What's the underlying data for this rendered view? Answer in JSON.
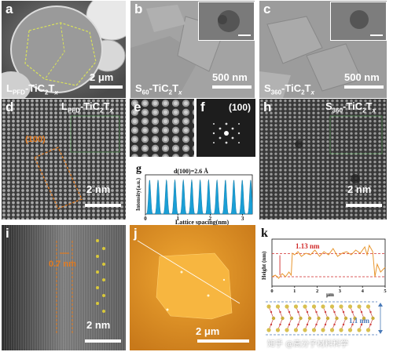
{
  "panels": {
    "a": {
      "label": "a",
      "sample": "L",
      "sample_sub": "PFD",
      "sample_rest": "-Ti",
      "scale": "2 μm"
    },
    "b": {
      "label": "b",
      "sample": "S",
      "sample_sub": "60",
      "sample_rest": "-Ti",
      "scale": "500 nm"
    },
    "c": {
      "label": "c",
      "sample": "S",
      "sample_sub": "360",
      "sample_rest": "-Ti",
      "scale": "500 nm"
    },
    "d": {
      "label": "d",
      "sample": "L",
      "sample_sub": "PFD",
      "sample_rest": "-Ti",
      "plane": "(100)",
      "scale": "2 nm"
    },
    "e": {
      "label": "e"
    },
    "f": {
      "label": "f",
      "plane": "(100)"
    },
    "g": {
      "label": "g",
      "annotation": "d(100)=2.6 Å",
      "xlabel": "Lattice spacing(nm)",
      "ylabel": "Intensity(a.u.)"
    },
    "h": {
      "label": "h",
      "sample": "S",
      "sample_sub": "360",
      "sample_rest": "-Ti",
      "scale": "2 nm"
    },
    "i": {
      "label": "i",
      "measure": "0.7 nm",
      "scale": "2 nm"
    },
    "j": {
      "label": "j",
      "scale": "2 μm"
    },
    "k": {
      "label": "k",
      "measure": "1.13 nm",
      "xlabel": "μm",
      "ylabel": "Height (nm)",
      "layer": "1.1 nm"
    }
  },
  "formula": {
    "c": "C",
    "c_sub": "2",
    "t": "T",
    "t_sub": "x"
  },
  "watermark": "知乎 @高分子材料科学",
  "chart_data": [
    {
      "type": "area",
      "panel": "g",
      "title": "d(100)=2.6 Å",
      "xlabel": "Lattice spacing(nm)",
      "ylabel": "Intensity(a.u.)",
      "xlim": [
        0,
        3.3
      ],
      "xticks": [
        0,
        1,
        2,
        3
      ],
      "peak_spacing_nm": 0.26,
      "color": "#1a9fd6"
    },
    {
      "type": "line",
      "panel": "k",
      "xlabel": "μm",
      "ylabel": "Height (nm)",
      "xlim": [
        0,
        5
      ],
      "xticks": [
        0,
        1,
        2,
        3,
        4,
        5
      ],
      "ylim": [
        0,
        3
      ],
      "step_height_nm": 1.13,
      "x": [
        0,
        0.15,
        0.3,
        0.45,
        0.6,
        0.75,
        0.85,
        0.9,
        1.0,
        1.15,
        1.3,
        1.5,
        1.7,
        1.9,
        2.1,
        2.3,
        2.5,
        2.7,
        2.9,
        3.1,
        3.3,
        3.5,
        3.7,
        3.9,
        4.1,
        4.2,
        4.3,
        4.45,
        4.55,
        4.65,
        4.8,
        5.0
      ],
      "values": [
        0.6,
        0.7,
        0.5,
        0.8,
        0.6,
        0.9,
        0.7,
        2.1,
        2.0,
        2.2,
        1.9,
        2.1,
        2.0,
        2.3,
        1.9,
        2.2,
        2.0,
        2.4,
        1.9,
        2.1,
        2.2,
        2.0,
        2.3,
        2.1,
        2.5,
        2.0,
        2.6,
        2.2,
        0.6,
        1.4,
        0.9,
        1.2
      ],
      "color": "#e8962e"
    }
  ]
}
